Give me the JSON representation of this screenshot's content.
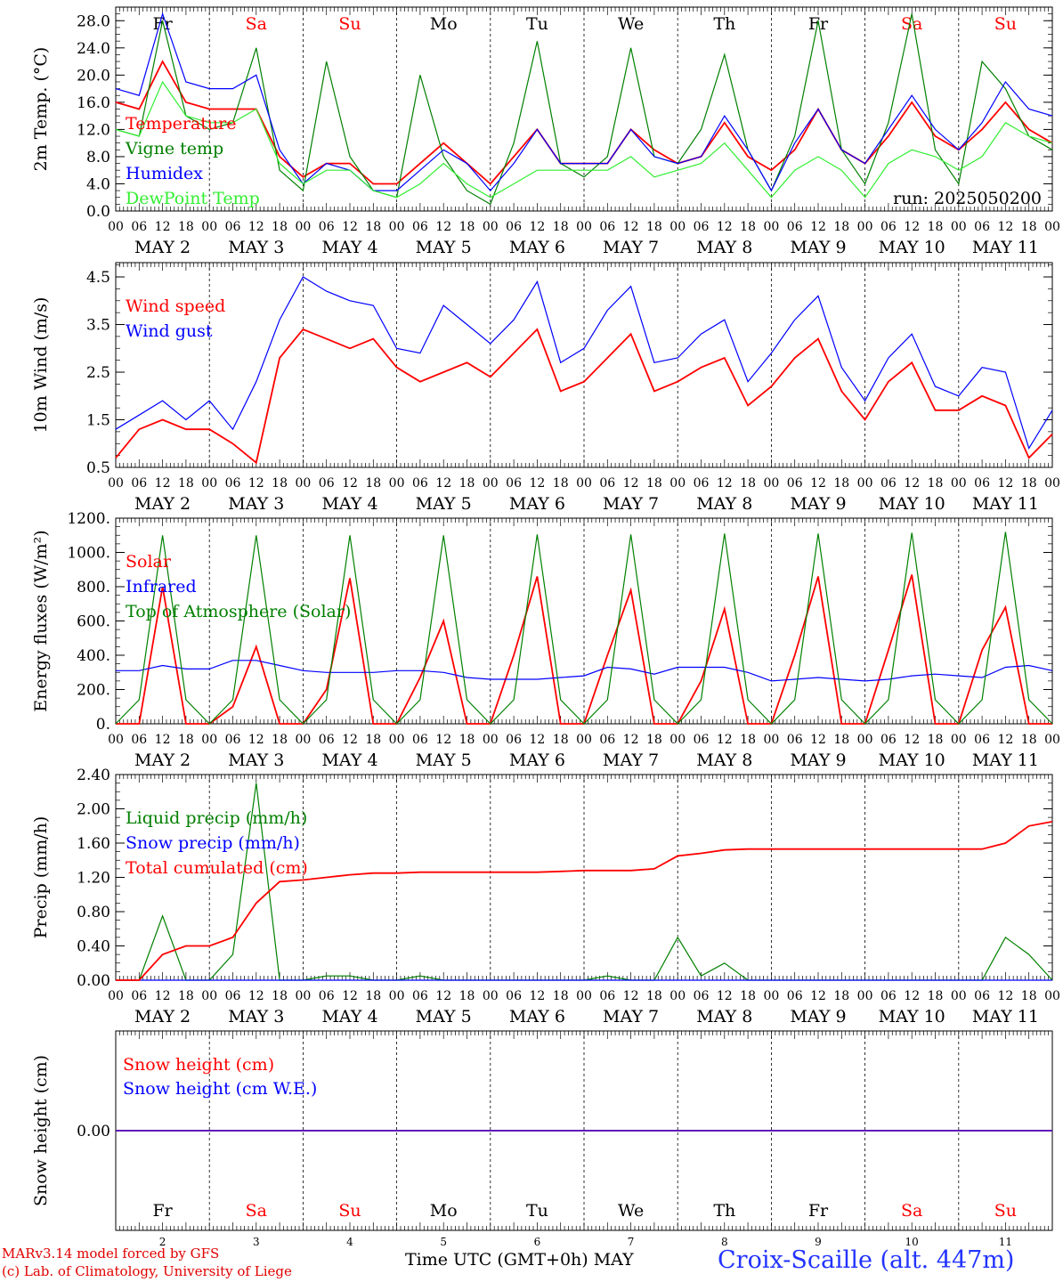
{
  "days": {
    "weekday": [
      "Fr",
      "Sa",
      "Su",
      "Mo",
      "Tu",
      "We",
      "Th",
      "Fr",
      "Sa",
      "Su"
    ],
    "weekend": [
      false,
      true,
      true,
      false,
      false,
      false,
      false,
      false,
      true,
      true
    ],
    "date": [
      "MAY  2",
      "MAY  3",
      "MAY  4",
      "MAY  5",
      "MAY  6",
      "MAY  7",
      "MAY  8",
      "MAY  9",
      "MAY 10",
      "MAY 11"
    ],
    "daynum": [
      "2",
      "3",
      "4",
      "5",
      "6",
      "7",
      "8",
      "9",
      "10",
      "11"
    ],
    "hours": [
      "00",
      "06",
      "12",
      "18"
    ],
    "end_hour": "00"
  },
  "colors": {
    "red": "#ff0000",
    "green": "#008000",
    "blue": "#0000ff",
    "lightgreen": "#33ee33"
  },
  "footer": {
    "credit1": "MARv3.14 model forced by GFS",
    "credit2": "(c) Lab. of Climatology, University of Liege",
    "xlabel": "Time UTC (GMT+0h) MAY",
    "station": "Croix-Scaille (alt. 447m)"
  },
  "chart_data": [
    {
      "type": "line",
      "ylabel": "2m Temp. (°C)",
      "ylim": [
        0,
        30
      ],
      "yticks": [
        "0.0",
        "4.0",
        "8.0",
        "12.0",
        "16.0",
        "20.0",
        "24.0",
        "28.0"
      ],
      "ytick_values": [
        0,
        4,
        8,
        12,
        16,
        20,
        24,
        28
      ],
      "show_weekdays": true,
      "annotation": "run: 2025050200",
      "x_hours": [
        0,
        6,
        12,
        18,
        24,
        30,
        36,
        42,
        48,
        54,
        60,
        66,
        72,
        78,
        84,
        90,
        96,
        102,
        108,
        114,
        120,
        126,
        132,
        138,
        144,
        150,
        156,
        162,
        168,
        174,
        180,
        186,
        192,
        198,
        204,
        210,
        216,
        222,
        228,
        234,
        240
      ],
      "series": [
        {
          "name": "Temperature",
          "color": "red",
          "values": [
            16,
            15,
            22,
            16,
            15,
            15,
            15,
            8,
            5,
            7,
            7,
            4,
            4,
            7,
            10,
            7,
            4,
            8,
            12,
            7,
            7,
            7,
            12,
            9,
            7,
            8,
            13,
            8,
            6,
            9,
            15,
            9,
            7,
            11,
            16,
            11,
            9,
            12,
            16,
            12,
            10
          ]
        },
        {
          "name": "Vigne temp",
          "color": "green",
          "values": [
            12,
            11,
            28,
            14,
            12,
            13,
            24,
            6,
            3,
            22,
            8,
            3,
            2,
            20,
            8,
            3,
            1,
            10,
            25,
            7,
            5,
            8,
            24,
            8,
            7,
            12,
            23,
            9,
            3,
            11,
            28,
            9,
            4,
            13,
            29,
            9,
            4,
            22,
            18,
            11,
            9
          ]
        },
        {
          "name": "Humidex",
          "color": "blue",
          "values": [
            18,
            17,
            29,
            19,
            18,
            18,
            20,
            9,
            4,
            7,
            6,
            3,
            3,
            6,
            9,
            7,
            3,
            7,
            12,
            7,
            7,
            7,
            12,
            8,
            7,
            8,
            14,
            9,
            3,
            10,
            15,
            9,
            7,
            12,
            17,
            12,
            9,
            13,
            19,
            15,
            14
          ]
        },
        {
          "name": "DewPoint Temp",
          "color": "lightgreen",
          "values": [
            12,
            11,
            19,
            14,
            13,
            13,
            15,
            7,
            4,
            6,
            6,
            3,
            2,
            4,
            7,
            4,
            2,
            4,
            6,
            6,
            6,
            6,
            8,
            5,
            6,
            7,
            10,
            6,
            2,
            6,
            8,
            6,
            2,
            7,
            9,
            8,
            6,
            8,
            13,
            11,
            10
          ]
        }
      ]
    },
    {
      "type": "line",
      "ylabel": "10m Wind (m/s)",
      "ylim": [
        0.5,
        4.8
      ],
      "yticks": [
        "0.5",
        "1.5",
        "2.5",
        "3.5",
        "4.5"
      ],
      "ytick_values": [
        0.5,
        1.5,
        2.5,
        3.5,
        4.5
      ],
      "x_hours": [
        0,
        6,
        12,
        18,
        24,
        30,
        36,
        42,
        48,
        54,
        60,
        66,
        72,
        78,
        84,
        90,
        96,
        102,
        108,
        114,
        120,
        126,
        132,
        138,
        144,
        150,
        156,
        162,
        168,
        174,
        180,
        186,
        192,
        198,
        204,
        210,
        216,
        222,
        228,
        234,
        240
      ],
      "series": [
        {
          "name": "Wind speed",
          "color": "red",
          "values": [
            0.7,
            1.3,
            1.5,
            1.3,
            1.3,
            1.0,
            0.6,
            2.8,
            3.4,
            3.2,
            3.0,
            3.2,
            2.6,
            2.3,
            2.5,
            2.7,
            2.4,
            2.9,
            3.4,
            2.1,
            2.3,
            2.8,
            3.3,
            2.1,
            2.3,
            2.6,
            2.8,
            1.8,
            2.2,
            2.8,
            3.2,
            2.1,
            1.5,
            2.3,
            2.7,
            1.7,
            1.7,
            2.0,
            1.8,
            0.7,
            1.2
          ]
        },
        {
          "name": "Wind gust",
          "color": "blue",
          "values": [
            1.3,
            1.6,
            1.9,
            1.5,
            1.9,
            1.3,
            2.3,
            3.6,
            4.5,
            4.2,
            4.0,
            3.9,
            3.0,
            2.9,
            3.9,
            3.5,
            3.1,
            3.6,
            4.4,
            2.7,
            3.0,
            3.8,
            4.3,
            2.7,
            2.8,
            3.3,
            3.6,
            2.3,
            2.9,
            3.6,
            4.1,
            2.6,
            1.9,
            2.8,
            3.3,
            2.2,
            2.0,
            2.6,
            2.5,
            0.9,
            1.7
          ]
        }
      ]
    },
    {
      "type": "line",
      "ylabel": "Energy fluxes (W/m²)",
      "ylim": [
        0,
        1200
      ],
      "yticks": [
        "0.",
        "200.",
        "400.",
        "600.",
        "800.",
        "1000.",
        "1200."
      ],
      "ytick_values": [
        0,
        200,
        400,
        600,
        800,
        1000,
        1200
      ],
      "x_hours": [
        0,
        6,
        12,
        18,
        24,
        30,
        36,
        42,
        48,
        54,
        60,
        66,
        72,
        78,
        84,
        90,
        96,
        102,
        108,
        114,
        120,
        126,
        132,
        138,
        144,
        150,
        156,
        162,
        168,
        174,
        180,
        186,
        192,
        198,
        204,
        210,
        216,
        222,
        228,
        234,
        240
      ],
      "series": [
        {
          "name": "Solar",
          "color": "red",
          "values": [
            0,
            0,
            800,
            0,
            0,
            100,
            450,
            0,
            0,
            200,
            850,
            0,
            0,
            270,
            600,
            0,
            0,
            400,
            860,
            0,
            0,
            400,
            780,
            0,
            0,
            250,
            670,
            0,
            0,
            400,
            860,
            0,
            0,
            430,
            870,
            0,
            0,
            430,
            680,
            0,
            0
          ]
        },
        {
          "name": "Infrared",
          "color": "blue",
          "values": [
            310,
            310,
            340,
            320,
            320,
            370,
            370,
            340,
            310,
            300,
            300,
            300,
            310,
            310,
            300,
            270,
            260,
            260,
            260,
            270,
            280,
            330,
            320,
            290,
            330,
            330,
            330,
            300,
            250,
            260,
            270,
            260,
            250,
            260,
            280,
            290,
            280,
            270,
            330,
            340,
            310
          ]
        },
        {
          "name": "Top of Atmosphere (Solar)",
          "color": "green",
          "values": [
            0,
            140,
            1100,
            140,
            0,
            140,
            1100,
            140,
            0,
            140,
            1100,
            140,
            0,
            140,
            1100,
            140,
            0,
            140,
            1105,
            140,
            0,
            140,
            1105,
            140,
            0,
            140,
            1110,
            140,
            0,
            140,
            1110,
            140,
            0,
            140,
            1115,
            140,
            0,
            140,
            1120,
            140,
            0
          ]
        }
      ]
    },
    {
      "type": "line",
      "ylabel": "Precip (mm/h)",
      "ylim": [
        0,
        2.4
      ],
      "yticks": [
        "0.00",
        "0.40",
        "0.80",
        "1.20",
        "1.60",
        "2.00",
        "2.40"
      ],
      "ytick_values": [
        0,
        0.4,
        0.8,
        1.2,
        1.6,
        2.0,
        2.4
      ],
      "x_hours": [
        0,
        6,
        12,
        18,
        24,
        30,
        36,
        42,
        48,
        54,
        60,
        66,
        72,
        78,
        84,
        90,
        96,
        102,
        108,
        114,
        120,
        126,
        132,
        138,
        144,
        150,
        156,
        162,
        168,
        174,
        180,
        186,
        192,
        198,
        204,
        210,
        216,
        222,
        228,
        234,
        240
      ],
      "series": [
        {
          "name": "Liquid precip (mm/h)",
          "color": "green",
          "values": [
            0,
            0,
            0.75,
            0,
            0,
            0.3,
            2.3,
            0,
            0,
            0.05,
            0.05,
            0,
            0,
            0.05,
            0,
            0,
            0,
            0,
            0,
            0,
            0,
            0.05,
            0,
            0,
            0.5,
            0.05,
            0.2,
            0,
            0,
            0,
            0,
            0,
            0,
            0,
            0,
            0,
            0,
            0,
            0.5,
            0.3,
            0
          ]
        },
        {
          "name": "Snow precip (mm/h)",
          "color": "blue",
          "values": [
            0,
            0,
            0,
            0,
            0,
            0,
            0,
            0,
            0,
            0,
            0,
            0,
            0,
            0,
            0,
            0,
            0,
            0,
            0,
            0,
            0,
            0,
            0,
            0,
            0,
            0,
            0,
            0,
            0,
            0,
            0,
            0,
            0,
            0,
            0,
            0,
            0,
            0,
            0,
            0,
            0
          ]
        },
        {
          "name": "Total cumulated (cm)",
          "color": "red",
          "values": [
            0,
            0,
            0.3,
            0.4,
            0.4,
            0.5,
            0.9,
            1.15,
            1.17,
            1.2,
            1.23,
            1.25,
            1.25,
            1.26,
            1.26,
            1.26,
            1.26,
            1.26,
            1.26,
            1.27,
            1.28,
            1.28,
            1.28,
            1.3,
            1.45,
            1.48,
            1.52,
            1.53,
            1.53,
            1.53,
            1.53,
            1.53,
            1.53,
            1.53,
            1.53,
            1.53,
            1.53,
            1.53,
            1.6,
            1.8,
            1.85
          ]
        }
      ]
    },
    {
      "type": "line",
      "ylabel": "Snow height (cm)",
      "ylim": [
        -1,
        1
      ],
      "yticks": [
        "0.00"
      ],
      "ytick_values": [
        0
      ],
      "x_hours": [
        0,
        240
      ],
      "series": [
        {
          "name": "Snow height (cm)",
          "color": "red",
          "values": [
            0,
            0
          ]
        },
        {
          "name": "Snow height (cm W.E.)",
          "color": "blue",
          "values": [
            0,
            0
          ]
        }
      ]
    }
  ]
}
